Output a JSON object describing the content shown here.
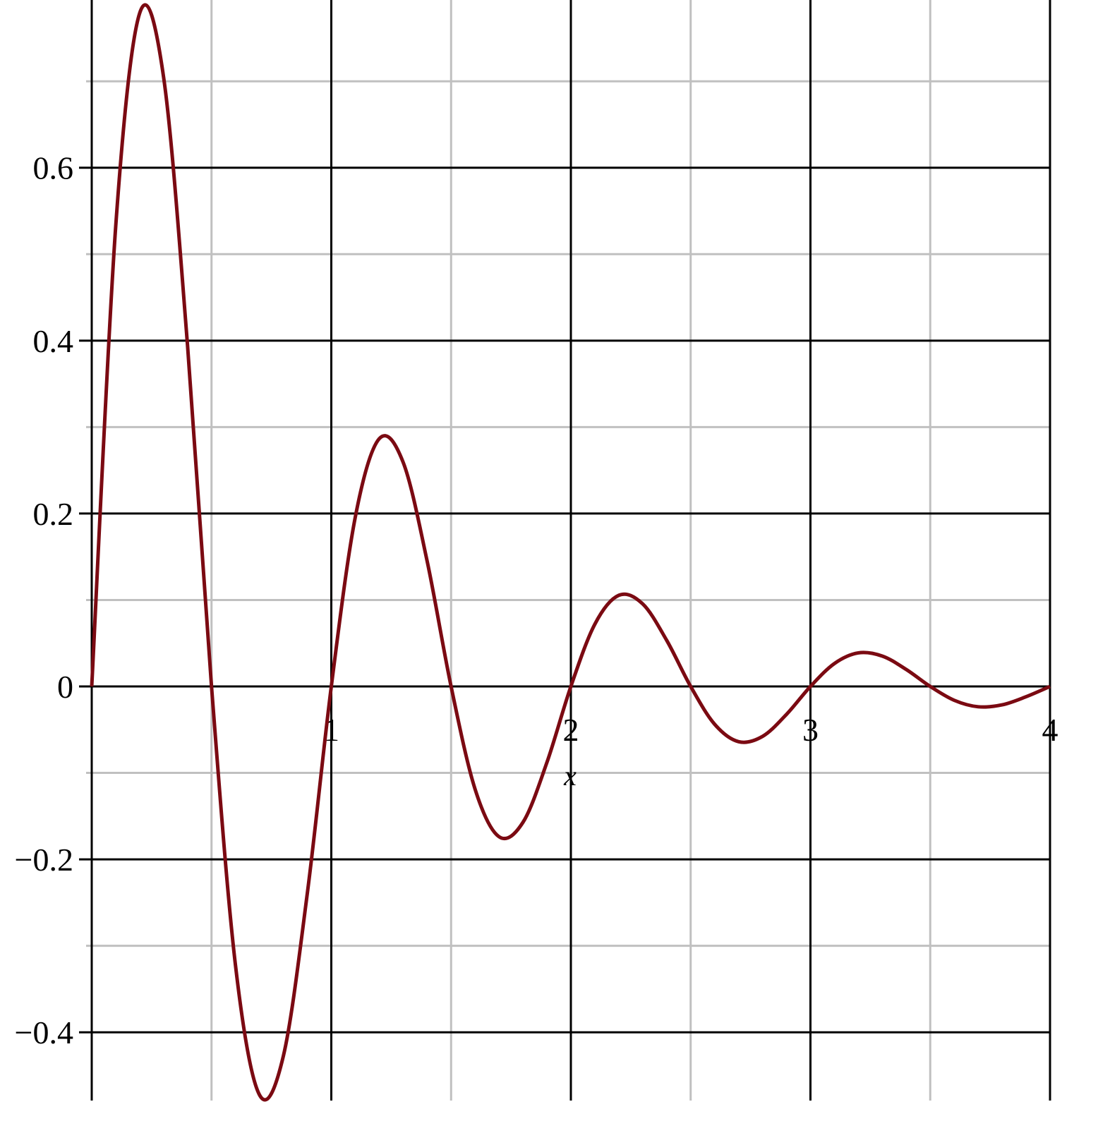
{
  "chart_data": {
    "type": "line",
    "title": "",
    "xlabel": "x",
    "ylabel": "",
    "xlim": [
      0,
      4
    ],
    "ylim": [
      -0.479,
      0.794
    ],
    "grid": true,
    "x_major_ticks": [
      0,
      1,
      2,
      3,
      4
    ],
    "x_tick_labels": [
      "1",
      "2",
      "3",
      "4"
    ],
    "x_minor_ticks": [
      0.5,
      1.5,
      2.5,
      3.5
    ],
    "y_major_ticks": [
      -0.4,
      -0.2,
      0,
      0.2,
      0.4,
      0.6
    ],
    "y_tick_labels": [
      "−0.4",
      "−0.2",
      "0",
      "0.2",
      "0.4",
      "0.6"
    ],
    "y_minor_ticks": [
      -0.3,
      -0.1,
      0.1,
      0.3,
      0.5,
      0.7
    ],
    "colors": {
      "curve": "#7b0a12",
      "major_grid": "#000000",
      "minor_grid": "#c0c0c0"
    },
    "series": [
      {
        "x": [
          0,
          0.1,
          0.2,
          0.3,
          0.4,
          0.5,
          0.6,
          0.7,
          0.8,
          0.9,
          1,
          1.1,
          1.2,
          1.3,
          1.4,
          1.5,
          1.6,
          1.7,
          1.8,
          1.9,
          2,
          2.1,
          2.2,
          2.3,
          2.4,
          2.5,
          2.6,
          2.7,
          2.8,
          2.9,
          3,
          3.1,
          3.2,
          3.3,
          3.4,
          3.5,
          3.6,
          3.7,
          3.8,
          3.9,
          4
        ],
        "y": [
          0,
          0.5318,
          0.7787,
          0.7046,
          0.394,
          0,
          -0.3226,
          -0.4723,
          -0.4273,
          -0.239,
          0,
          0.1957,
          0.2865,
          0.2592,
          0.145,
          0,
          -0.1187,
          -0.1738,
          -0.1572,
          -0.0879,
          0,
          0.072,
          0.1054,
          0.0954,
          0.0533,
          0,
          -0.0437,
          -0.0639,
          -0.0578,
          -0.0323,
          0,
          0.0265,
          0.0388,
          0.0351,
          0.0196,
          0,
          -0.016,
          -0.0235,
          -0.0213,
          -0.0119,
          0
        ]
      }
    ]
  }
}
